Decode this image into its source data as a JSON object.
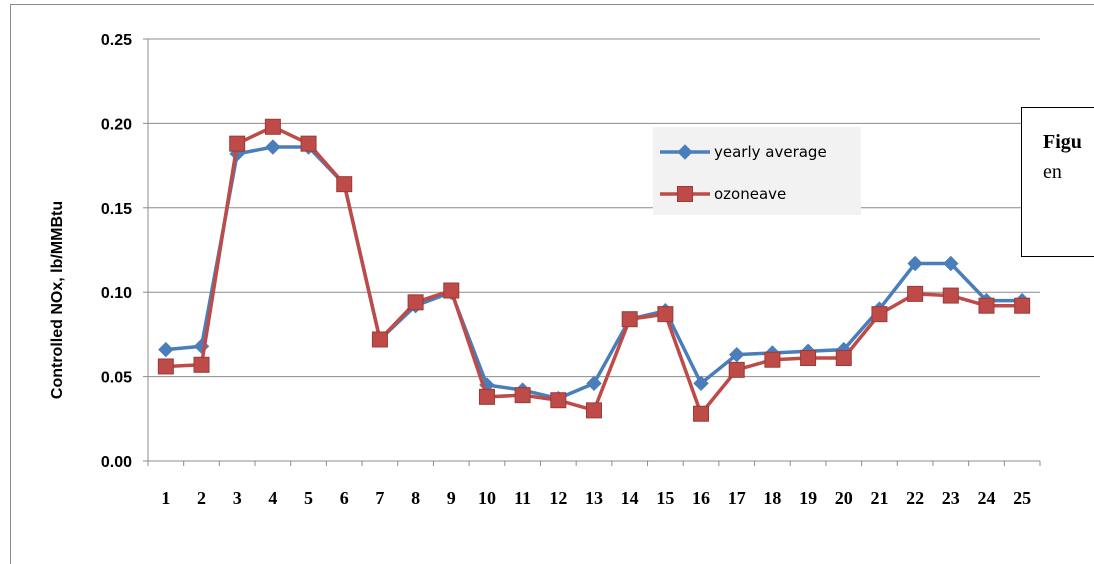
{
  "chart_data": {
    "type": "line",
    "title": "",
    "xlabel": "",
    "ylabel": "Controlled NOx, lb/MMBtu",
    "ylim": [
      0,
      0.25
    ],
    "yticks": [
      "0.00",
      "0.05",
      "0.10",
      "0.15",
      "0.20",
      "0.25"
    ],
    "categories": [
      "1",
      "2",
      "3",
      "4",
      "5",
      "6",
      "7",
      "8",
      "9",
      "10",
      "11",
      "12",
      "13",
      "14",
      "15",
      "16",
      "17",
      "18",
      "19",
      "20",
      "21",
      "22",
      "23",
      "24",
      "25"
    ],
    "grid": "horizontal",
    "legend_position": "upper-right inside plot",
    "series": [
      {
        "name": "yearly average",
        "color": "#4a7ebb",
        "marker": "diamond",
        "values": [
          0.066,
          0.068,
          0.182,
          0.186,
          0.186,
          0.164,
          0.072,
          0.092,
          0.1,
          0.045,
          0.042,
          0.037,
          0.046,
          0.084,
          0.089,
          0.046,
          0.063,
          0.064,
          0.065,
          0.066,
          0.09,
          0.117,
          0.117,
          0.095,
          0.095
        ]
      },
      {
        "name": "ozoneave",
        "color": "#be4b48",
        "marker": "square",
        "values": [
          0.056,
          0.057,
          0.188,
          0.198,
          0.188,
          0.164,
          0.072,
          0.094,
          0.101,
          0.038,
          0.039,
          0.036,
          0.03,
          0.084,
          0.087,
          0.028,
          0.054,
          0.06,
          0.061,
          0.061,
          0.087,
          0.099,
          0.098,
          0.092,
          0.092
        ]
      }
    ]
  },
  "caption": {
    "line1": "Figu",
    "line2": "en"
  }
}
